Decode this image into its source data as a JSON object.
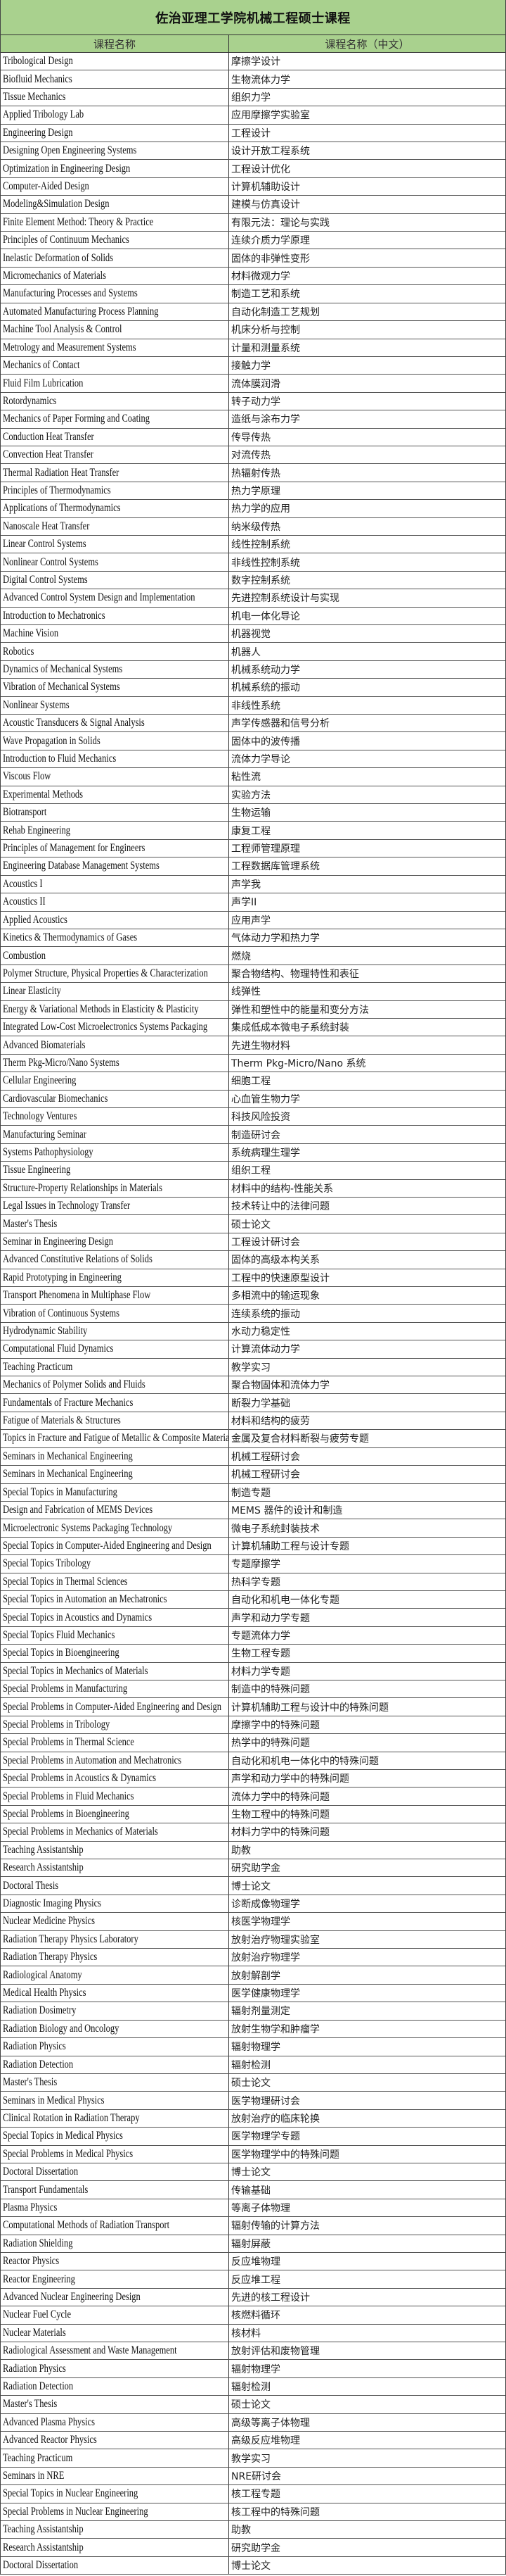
{
  "title": "佐治亚理工学院机械工程硕士课程",
  "headers": {
    "english": "课程名称",
    "chinese": "课程名称（中文）"
  },
  "colors": {
    "header_bg": "#a9d18e"
  },
  "courses": [
    [
      "Tribological Design",
      "摩擦学设计"
    ],
    [
      "Biofluid Mechanics",
      "生物流体力学"
    ],
    [
      "Tissue Mechanics",
      "组织力学"
    ],
    [
      "Applied Tribology Lab",
      "应用摩擦学实验室"
    ],
    [
      "Engineering Design",
      "工程设计"
    ],
    [
      "Designing Open Engineering Systems",
      "设计开放工程系统"
    ],
    [
      "Optimization in Engineering Design",
      "工程设计优化"
    ],
    [
      "Computer-Aided Design",
      "计算机辅助设计"
    ],
    [
      "Modeling&Simulation Design",
      "建模与仿真设计"
    ],
    [
      "Finite Element Method: Theory & Practice",
      "有限元法：理论与实践"
    ],
    [
      "Principles of Continuum Mechanics",
      "连续介质力学原理"
    ],
    [
      "Inelastic Deformation of Solids",
      "固体的非弹性变形"
    ],
    [
      "Micromechanics of Materials",
      "材料微观力学"
    ],
    [
      "Manufacturing Processes and Systems",
      "制造工艺和系统"
    ],
    [
      "Automated Manufacturing Process Planning",
      "自动化制造工艺规划"
    ],
    [
      "Machine Tool Analysis & Control",
      "机床分析与控制"
    ],
    [
      "Metrology and Measurement Systems",
      "计量和测量系统"
    ],
    [
      "Mechanics of Contact",
      "接触力学"
    ],
    [
      "Fluid Film Lubrication",
      "流体膜润滑"
    ],
    [
      "Rotordynamics",
      "转子动力学"
    ],
    [
      "Mechanics of Paper Forming and Coating",
      "造纸与涂布力学"
    ],
    [
      "Conduction Heat Transfer",
      "传导传热"
    ],
    [
      "Convection Heat Transfer",
      "对流传热"
    ],
    [
      "Thermal Radiation Heat Transfer",
      "热辐射传热"
    ],
    [
      "Principles of Thermodynamics",
      "热力学原理"
    ],
    [
      "Applications of Thermodynamics",
      "热力学的应用"
    ],
    [
      "Nanoscale Heat Transfer",
      "纳米级传热"
    ],
    [
      "Linear Control Systems",
      "线性控制系统"
    ],
    [
      "Nonlinear Control Systems",
      "非线性控制系统"
    ],
    [
      "Digital Control Systems",
      "数字控制系统"
    ],
    [
      "Advanced Control System Design and Implementation",
      "先进控制系统设计与实现"
    ],
    [
      "Introduction to Mechatronics",
      "机电一体化导论"
    ],
    [
      "Machine Vision",
      "机器视觉"
    ],
    [
      "Robotics",
      "机器人"
    ],
    [
      "Dynamics of Mechanical Systems",
      "机械系统动力学"
    ],
    [
      "Vibration of Mechanical Systems",
      "机械系统的振动"
    ],
    [
      "Nonlinear Systems",
      "非线性系统"
    ],
    [
      "Acoustic Transducers & Signal Analysis",
      "声学传感器和信号分析"
    ],
    [
      "Wave Propagation in Solids",
      "固体中的波传播"
    ],
    [
      "Introduction to Fluid Mechanics",
      "流体力学导论"
    ],
    [
      "Viscous Flow",
      "粘性流"
    ],
    [
      "Experimental Methods",
      "实验方法"
    ],
    [
      "Biotransport",
      "生物运输"
    ],
    [
      "Rehab Engineering",
      "康复工程"
    ],
    [
      "Principles of Management for Engineers",
      "工程师管理原理"
    ],
    [
      "Engineering Database Management Systems",
      "工程数据库管理系统"
    ],
    [
      "Acoustics I",
      "声学我"
    ],
    [
      "Acoustics II",
      "声学II"
    ],
    [
      "Applied Acoustics",
      "应用声学"
    ],
    [
      "Kinetics & Thermodynamics of Gases",
      "气体动力学和热力学"
    ],
    [
      "Combustion",
      "燃烧"
    ],
    [
      "Polymer Structure, Physical Properties & Characterization",
      "聚合物结构、物理特性和表征"
    ],
    [
      "Linear Elasticity",
      "线弹性"
    ],
    [
      "Energy & Variational Methods in Elasticity & Plasticity",
      "弹性和塑性中的能量和变分方法"
    ],
    [
      "Integrated Low-Cost Microelectronics Systems Packaging",
      "集成低成本微电子系统封装"
    ],
    [
      "Advanced Biomaterials",
      "先进生物材料"
    ],
    [
      "Therm Pkg-Micro/Nano Systems",
      "Therm Pkg-Micro/Nano 系统"
    ],
    [
      "Cellular Engineering",
      "细胞工程"
    ],
    [
      "Cardiovascular Biomechanics",
      "心血管生物力学"
    ],
    [
      "Technology Ventures",
      "科技风险投资"
    ],
    [
      "Manufacturing Seminar",
      "制造研讨会"
    ],
    [
      "Systems Pathophysiology",
      "系统病理生理学"
    ],
    [
      "Tissue Engineering",
      "组织工程"
    ],
    [
      "Structure-Property Relationships in Materials",
      "材料中的结构-性能关系"
    ],
    [
      "Legal Issues in Technology Transfer",
      "技术转让中的法律问题"
    ],
    [
      "Master's Thesis",
      "硕士论文"
    ],
    [
      "Seminar in Engineering Design",
      "工程设计研讨会"
    ],
    [
      "Advanced Constitutive Relations of Solids",
      "固体的高级本构关系"
    ],
    [
      "Rapid Prototyping in Engineering",
      "工程中的快速原型设计"
    ],
    [
      "Transport Phenomena in Multiphase Flow",
      "多相流中的输运现象"
    ],
    [
      "Vibration of Continuous Systems",
      "连续系统的振动"
    ],
    [
      "Hydrodynamic Stability",
      "水动力稳定性"
    ],
    [
      "Computational Fluid Dynamics",
      "计算流体动力学"
    ],
    [
      "Teaching Practicum",
      "教学实习"
    ],
    [
      "Mechanics of Polymer Solids and Fluids",
      "聚合物固体和流体力学"
    ],
    [
      "Fundamentals of Fracture Mechanics",
      "断裂力学基础"
    ],
    [
      "Fatigue of Materials & Structures",
      "材料和结构的疲劳"
    ],
    [
      "Topics in Fracture and Fatigue of Metallic & Composite Materials",
      "金属及复合材料断裂与疲劳专题"
    ],
    [
      "Seminars in Mechanical Engineering",
      "机械工程研讨会"
    ],
    [
      "Seminars in Mechanical Engineering",
      "机械工程研讨会"
    ],
    [
      "Special Topics in Manufacturing",
      "制造专题"
    ],
    [
      "Design and Fabrication of MEMS Devices",
      "MEMS 器件的设计和制造"
    ],
    [
      "Microelectronic Systems Packaging Technology",
      "微电子系统封装技术"
    ],
    [
      "Special Topics in Computer-Aided Engineering and Design",
      "计算机辅助工程与设计专题"
    ],
    [
      "Special Topics Tribology",
      "专题摩擦学"
    ],
    [
      "Special Topics in Thermal Sciences",
      "热科学专题"
    ],
    [
      "Special Topics in Automation an Mechatronics",
      "自动化和机电一体化专题"
    ],
    [
      "Special Topics in Acoustics and Dynamics",
      "声学和动力学专题"
    ],
    [
      "Special Topics Fluid Mechanics",
      "专题流体力学"
    ],
    [
      "Special Topics in Bioengineering",
      "生物工程专题"
    ],
    [
      "Special Topics in Mechanics of Materials",
      "材料力学专题"
    ],
    [
      "Special Problems in Manufacturing",
      "制造中的特殊问题"
    ],
    [
      "Special Problems in Computer-Aided Engineering and Design",
      "计算机辅助工程与设计中的特殊问题"
    ],
    [
      "Special Problems in Tribology",
      "摩擦学中的特殊问题"
    ],
    [
      "Special Problems in Thermal Science",
      "热学中的特殊问题"
    ],
    [
      "Special Problems in Automation and Mechatronics",
      "自动化和机电一体化中的特殊问题"
    ],
    [
      "Special Problems in Acoustics & Dynamics",
      "声学和动力学中的特殊问题"
    ],
    [
      "Special Problems in Fluid Mechanics",
      "流体力学中的特殊问题"
    ],
    [
      "Special Problems in Bioengineering",
      "生物工程中的特殊问题"
    ],
    [
      "Special Problems in Mechanics of Materials",
      "材料力学中的特殊问题"
    ],
    [
      "Teaching Assistantship",
      "助教"
    ],
    [
      "Research Assistantship",
      "研究助学金"
    ],
    [
      "Doctoral Thesis",
      "博士论文"
    ],
    [
      "Diagnostic Imaging Physics",
      "诊断成像物理学"
    ],
    [
      "Nuclear Medicine Physics",
      "核医学物理学"
    ],
    [
      "Radiation Therapy Physics Laboratory",
      "放射治疗物理实验室"
    ],
    [
      "Radiation Therapy Physics",
      "放射治疗物理学"
    ],
    [
      "Radiological Anatomy",
      "放射解剖学"
    ],
    [
      "Medical Health Physics",
      "医学健康物理学"
    ],
    [
      "Radiation Dosimetry",
      "辐射剂量测定"
    ],
    [
      "Radiation Biology and Oncology",
      "放射生物学和肿瘤学"
    ],
    [
      "Radiation Physics",
      "辐射物理学"
    ],
    [
      "Radiation Detection",
      "辐射检测"
    ],
    [
      "Master's Thesis",
      "硕士论文"
    ],
    [
      "Seminars in Medical Physics",
      "医学物理研讨会"
    ],
    [
      "Clinical Rotation in Radiation Therapy",
      "放射治疗的临床轮换"
    ],
    [
      "Special Topics in Medical Physics",
      "医学物理学专题"
    ],
    [
      "Special Problems in Medical Physics",
      "医学物理学中的特殊问题"
    ],
    [
      "Doctoral Dissertation",
      "博士论文"
    ],
    [
      "Transport Fundamentals",
      "传输基础"
    ],
    [
      "Plasma Physics",
      "等离子体物理"
    ],
    [
      "Computational Methods of Radiation Transport",
      "辐射传输的计算方法"
    ],
    [
      "Radiation Shielding",
      "辐射屏蔽"
    ],
    [
      "Reactor Physics",
      "反应堆物理"
    ],
    [
      "Reactor Engineering",
      "反应堆工程"
    ],
    [
      "Advanced Nuclear Engineering Design",
      "先进的核工程设计"
    ],
    [
      "Nuclear Fuel Cycle",
      "核燃料循环"
    ],
    [
      "Nuclear Materials",
      "核材料"
    ],
    [
      "Radiological Assessment and Waste Management",
      "放射评估和废物管理"
    ],
    [
      "Radiation Physics",
      "辐射物理学"
    ],
    [
      "Radiation Detection",
      "辐射检测"
    ],
    [
      "Master's Thesis",
      "硕士论文"
    ],
    [
      "Advanced Plasma Physics",
      "高级等离子体物理"
    ],
    [
      "Advanced Reactor Physics",
      "高级反应堆物理"
    ],
    [
      "Teaching Practicum",
      "教学实习"
    ],
    [
      "Seminars in NRE",
      "NRE研讨会"
    ],
    [
      "Special Topics in Nuclear Engineering",
      "核工程专题"
    ],
    [
      "Special Problems in Nuclear Engineering",
      "核工程中的特殊问题"
    ],
    [
      "Teaching Assistantship",
      "助教"
    ],
    [
      "Research Assistantship",
      "研究助学金"
    ],
    [
      "Doctoral Dissertation",
      "博士论文"
    ]
  ]
}
